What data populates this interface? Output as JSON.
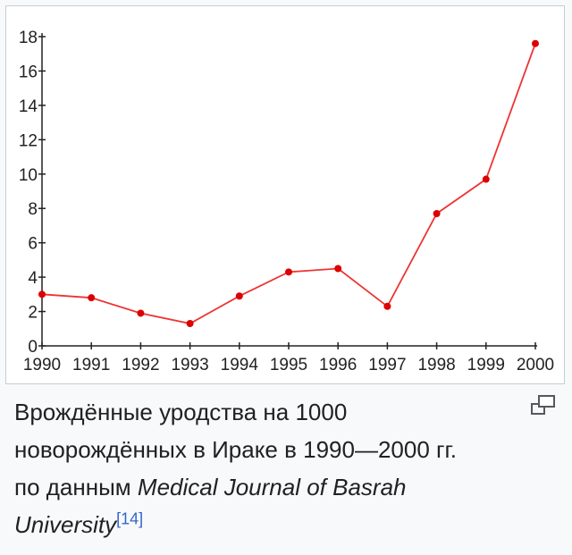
{
  "chart_data": {
    "type": "line",
    "x": [
      1990,
      1991,
      1992,
      1993,
      1994,
      1995,
      1996,
      1997,
      1998,
      1999,
      2000
    ],
    "series": [
      {
        "values": [
          3.0,
          2.8,
          1.9,
          1.3,
          2.9,
          4.3,
          4.5,
          2.3,
          7.7,
          9.7,
          17.6
        ]
      }
    ],
    "x_tick_labels": [
      "1990",
      "1991",
      "1992",
      "1993",
      "1994",
      "1995",
      "1996",
      "1997",
      "1998",
      "1999",
      "2000"
    ],
    "y_ticks": [
      "0",
      "2",
      "4",
      "6",
      "8",
      "10",
      "12",
      "14",
      "16",
      "18"
    ],
    "ylim": [
      0,
      18
    ],
    "xlim": [
      1990,
      2000
    ],
    "grid": false,
    "colors": {
      "line": "#ee3333",
      "point": "#dd0000",
      "axis": "#222222"
    }
  },
  "caption": {
    "line1": "Врождённые уродства на 1000",
    "line2": "новорождённых в Ираке в 1990—2000 гг.",
    "line3_prefix": "по данным ",
    "source_title": "Medical Journal of Basrah University",
    "reference": "[14]"
  },
  "icons": {
    "enlarge": "magnify-icon"
  }
}
